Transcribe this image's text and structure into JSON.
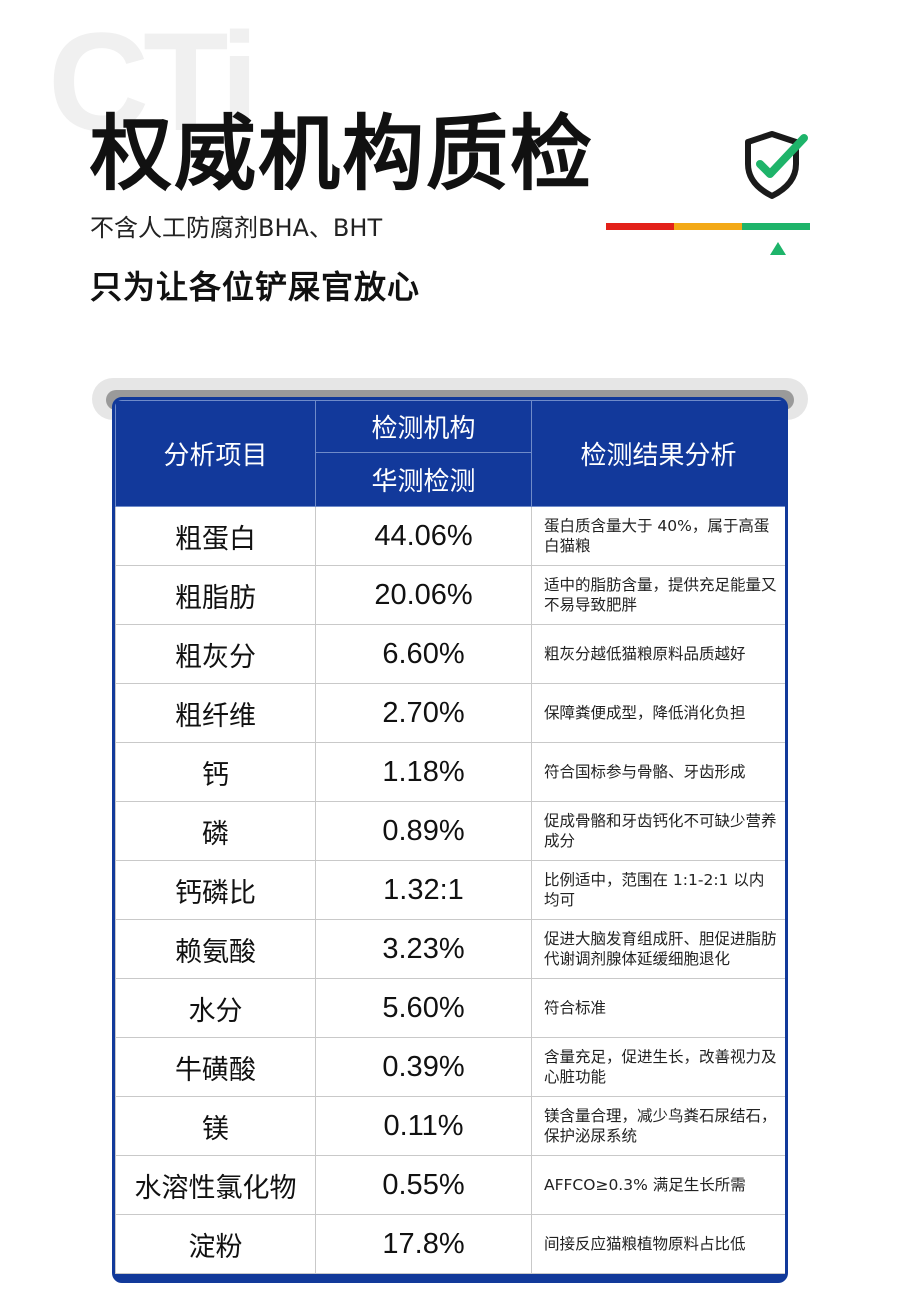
{
  "header": {
    "bg_logo": "CTi",
    "title": "权威机构质检",
    "subtitle": "不含人工防腐剂BHA、BHT",
    "tagline": "只为让各位铲屎官放心"
  },
  "icons": {
    "shield": "shield-check-icon",
    "colors": {
      "red": "#e32119",
      "orange": "#f3a916",
      "green": "#1eb46a",
      "navy": "#12399b"
    }
  },
  "table": {
    "headers": {
      "item": "分析项目",
      "agency_group": "检测机构",
      "agency": "华测检测",
      "result": "检测结果分析"
    },
    "rows": [
      {
        "item": "粗蛋白",
        "value": "44.06%",
        "note": "蛋白质含量大于 40%，属于高蛋白猫粮"
      },
      {
        "item": "粗脂肪",
        "value": "20.06%",
        "note": "适中的脂肪含量，提供充足能量又不易导致肥胖"
      },
      {
        "item": "粗灰分",
        "value": "6.60%",
        "note": "粗灰分越低猫粮原料品质越好"
      },
      {
        "item": "粗纤维",
        "value": "2.70%",
        "note": "保障粪便成型，降低消化负担"
      },
      {
        "item": "钙",
        "value": "1.18%",
        "note": "符合国标参与骨骼、牙齿形成"
      },
      {
        "item": "磷",
        "value": "0.89%",
        "note": "促成骨骼和牙齿钙化不可缺少营养成分"
      },
      {
        "item": "钙磷比",
        "value": "1.32:1",
        "note": "比例适中，范围在 1:1-2:1 以内均可"
      },
      {
        "item": "赖氨酸",
        "value": "3.23%",
        "note": "促进大脑发育组成肝、胆促进脂肪代谢调剂腺体延缓细胞退化"
      },
      {
        "item": "水分",
        "value": "5.60%",
        "note": "符合标准"
      },
      {
        "item": "牛磺酸",
        "value": "0.39%",
        "note": "含量充足，促进生长，改善视力及心脏功能"
      },
      {
        "item": "镁",
        "value": "0.11%",
        "note": "镁含量合理，减少鸟粪石尿结石，保护泌尿系统"
      },
      {
        "item": "水溶性氯化物",
        "value": "0.55%",
        "note": "AFFCO≥0.3% 满足生长所需"
      },
      {
        "item": "淀粉",
        "value": "17.8%",
        "note": "间接反应猫粮植物原料占比低"
      }
    ]
  }
}
